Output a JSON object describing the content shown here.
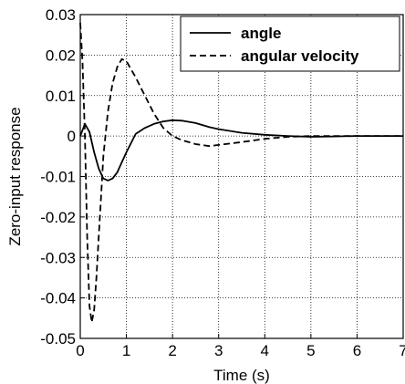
{
  "chart_data": {
    "type": "line",
    "xlabel": "Time (s)",
    "ylabel": "Zero-input  response",
    "xlim": [
      0,
      7
    ],
    "ylim": [
      -0.05,
      0.03
    ],
    "xticks": [
      0,
      1,
      2,
      3,
      4,
      5,
      6,
      7
    ],
    "xtick_labels": [
      "0",
      "1",
      "2",
      "3",
      "4",
      "5",
      "6",
      "7"
    ],
    "yticks": [
      -0.05,
      -0.04,
      -0.03,
      -0.02,
      -0.01,
      0,
      0.01,
      0.02,
      0.03
    ],
    "ytick_labels": [
      "-0.05",
      "-0.04",
      "-0.03",
      "-0.02",
      "-0.01",
      "0",
      "0.01",
      "0.02",
      "0.03"
    ],
    "grid": true,
    "legend_position": "top-right",
    "series": [
      {
        "name": "angle",
        "style": "solid",
        "color": "#000000",
        "x": [
          0,
          0.1,
          0.2,
          0.3,
          0.4,
          0.5,
          0.6,
          0.7,
          0.8,
          0.9,
          1.0,
          1.2,
          1.4,
          1.6,
          1.8,
          2.0,
          2.2,
          2.5,
          2.8,
          3.0,
          3.5,
          4.0,
          4.5,
          5.0,
          5.5,
          6.0,
          7.0
        ],
        "y": [
          0,
          0.003,
          0.001,
          -0.004,
          -0.008,
          -0.0105,
          -0.011,
          -0.0105,
          -0.009,
          -0.0065,
          -0.004,
          0.0005,
          0.002,
          0.003,
          0.0036,
          0.0039,
          0.0038,
          0.0032,
          0.0022,
          0.0017,
          0.0008,
          0.0003,
          0,
          -0.0002,
          -0.0001,
          0,
          0
        ]
      },
      {
        "name": "angular velocity",
        "style": "dashed",
        "color": "#000000",
        "x": [
          0,
          0.05,
          0.1,
          0.15,
          0.2,
          0.25,
          0.3,
          0.35,
          0.4,
          0.45,
          0.5,
          0.6,
          0.7,
          0.8,
          0.9,
          1.0,
          1.2,
          1.4,
          1.6,
          1.8,
          2.0,
          2.2,
          2.5,
          2.8,
          3.0,
          3.5,
          4.0,
          4.5,
          5.0,
          6.0,
          7.0
        ],
        "y": [
          0.028,
          0.018,
          0.0,
          -0.025,
          -0.042,
          -0.046,
          -0.043,
          -0.035,
          -0.025,
          -0.015,
          -0.005,
          0.006,
          0.013,
          0.017,
          0.019,
          0.0185,
          0.0145,
          0.01,
          0.0055,
          0.002,
          0.0,
          -0.001,
          -0.002,
          -0.0025,
          -0.0022,
          -0.0015,
          -0.0007,
          -0.0002,
          0,
          0,
          0
        ]
      }
    ]
  }
}
